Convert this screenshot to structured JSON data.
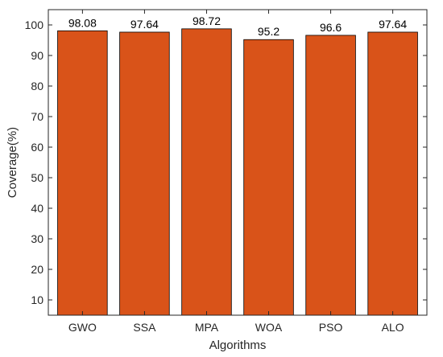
{
  "chart_data": {
    "type": "bar",
    "categories": [
      "GWO",
      "SSA",
      "MPA",
      "WOA",
      "PSO",
      "ALO"
    ],
    "values": [
      98.08,
      97.64,
      98.72,
      95.2,
      96.6,
      97.64
    ],
    "data_labels": [
      "98.08",
      "97.64",
      "98.72",
      "95.2",
      "96.6",
      "97.64"
    ],
    "title": "",
    "xlabel": "Algorithms",
    "ylabel": "Coverage(%)",
    "ylim": [
      5,
      105
    ],
    "yticks": [
      10,
      20,
      30,
      40,
      50,
      60,
      70,
      80,
      90,
      100
    ],
    "grid": false,
    "bar_color": "#D95319",
    "edge_color": "#000000"
  }
}
